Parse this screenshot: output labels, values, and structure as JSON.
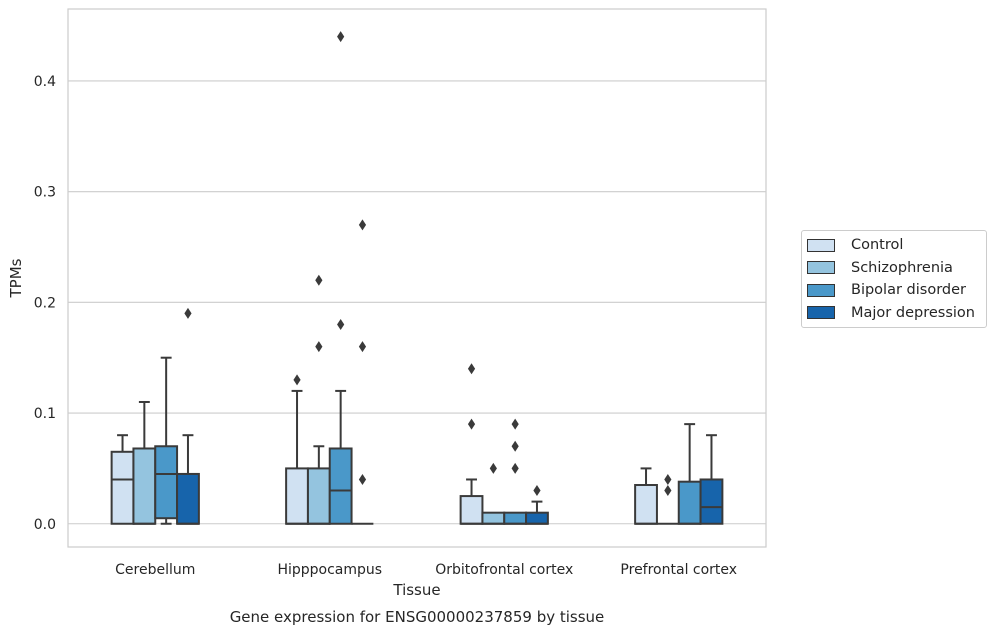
{
  "chart_data": {
    "type": "box",
    "title": "",
    "xlabel": "Tissue",
    "ylabel": "TPMs",
    "caption": "Gene expression for ENSG00000237859 by tissue",
    "ylim": [
      -0.021,
      0.465
    ],
    "yticks": [
      "0.0",
      "0.1",
      "0.2",
      "0.3",
      "0.4"
    ],
    "ytick_values": [
      0,
      0.1,
      0.2,
      0.3,
      0.4
    ],
    "grid": "horizontal",
    "legend_position": "right",
    "categories": [
      "Cerebellum",
      "Hipppocampus",
      "Orbitofrontal cortex",
      "Prefrontal cortex"
    ],
    "series": [
      {
        "name": "Control",
        "color": "#d0e1f2",
        "boxes": [
          {
            "q1": 0,
            "median": 0.04,
            "q3": 0.065,
            "whisker_low": 0,
            "whisker_high": 0.08,
            "outliers": []
          },
          {
            "q1": 0,
            "median": 0,
            "q3": 0.05,
            "whisker_low": 0,
            "whisker_high": 0.12,
            "outliers": [
              0.13
            ]
          },
          {
            "q1": 0,
            "median": 0,
            "q3": 0.025,
            "whisker_low": 0,
            "whisker_high": 0.04,
            "outliers": [
              0.09,
              0.14
            ]
          },
          {
            "q1": 0,
            "median": 0,
            "q3": 0.035,
            "whisker_low": 0,
            "whisker_high": 0.05,
            "outliers": []
          }
        ]
      },
      {
        "name": "Schizophrenia",
        "color": "#94c4df",
        "boxes": [
          {
            "q1": 0,
            "median": 0,
            "q3": 0.068,
            "whisker_low": 0,
            "whisker_high": 0.11,
            "outliers": []
          },
          {
            "q1": 0,
            "median": 0,
            "q3": 0.05,
            "whisker_low": 0,
            "whisker_high": 0.07,
            "outliers": [
              0.16,
              0.22
            ]
          },
          {
            "q1": 0,
            "median": 0,
            "q3": 0.01,
            "whisker_low": 0,
            "whisker_high": 0.01,
            "outliers": [
              0.05
            ]
          },
          {
            "q1": 0,
            "median": 0,
            "q3": 0,
            "whisker_low": 0,
            "whisker_high": 0,
            "outliers": [
              0.03,
              0.04
            ]
          }
        ]
      },
      {
        "name": "Bipolar disorder",
        "color": "#4a98c9",
        "boxes": [
          {
            "q1": 0.005,
            "median": 0.045,
            "q3": 0.07,
            "whisker_low": 0,
            "whisker_high": 0.15,
            "outliers": []
          },
          {
            "q1": 0,
            "median": 0.03,
            "q3": 0.068,
            "whisker_low": 0,
            "whisker_high": 0.12,
            "outliers": [
              0.18,
              0.44
            ]
          },
          {
            "q1": 0,
            "median": 0,
            "q3": 0.01,
            "whisker_low": 0,
            "whisker_high": 0.01,
            "outliers": [
              0.05,
              0.07,
              0.09
            ]
          },
          {
            "q1": 0,
            "median": 0,
            "q3": 0.038,
            "whisker_low": 0,
            "whisker_high": 0.09,
            "outliers": []
          }
        ]
      },
      {
        "name": "Major depression",
        "color": "#1764ab",
        "boxes": [
          {
            "q1": 0,
            "median": 0,
            "q3": 0.045,
            "whisker_low": 0,
            "whisker_high": 0.08,
            "outliers": [
              0.19
            ]
          },
          {
            "q1": 0,
            "median": 0,
            "q3": 0,
            "whisker_low": 0,
            "whisker_high": 0,
            "outliers": [
              0.04,
              0.16,
              0.27
            ]
          },
          {
            "q1": 0,
            "median": 0,
            "q3": 0.01,
            "whisker_low": 0,
            "whisker_high": 0.02,
            "outliers": [
              0.03
            ]
          },
          {
            "q1": 0,
            "median": 0.015,
            "q3": 0.04,
            "whisker_low": 0,
            "whisker_high": 0.08,
            "outliers": []
          }
        ]
      }
    ]
  }
}
